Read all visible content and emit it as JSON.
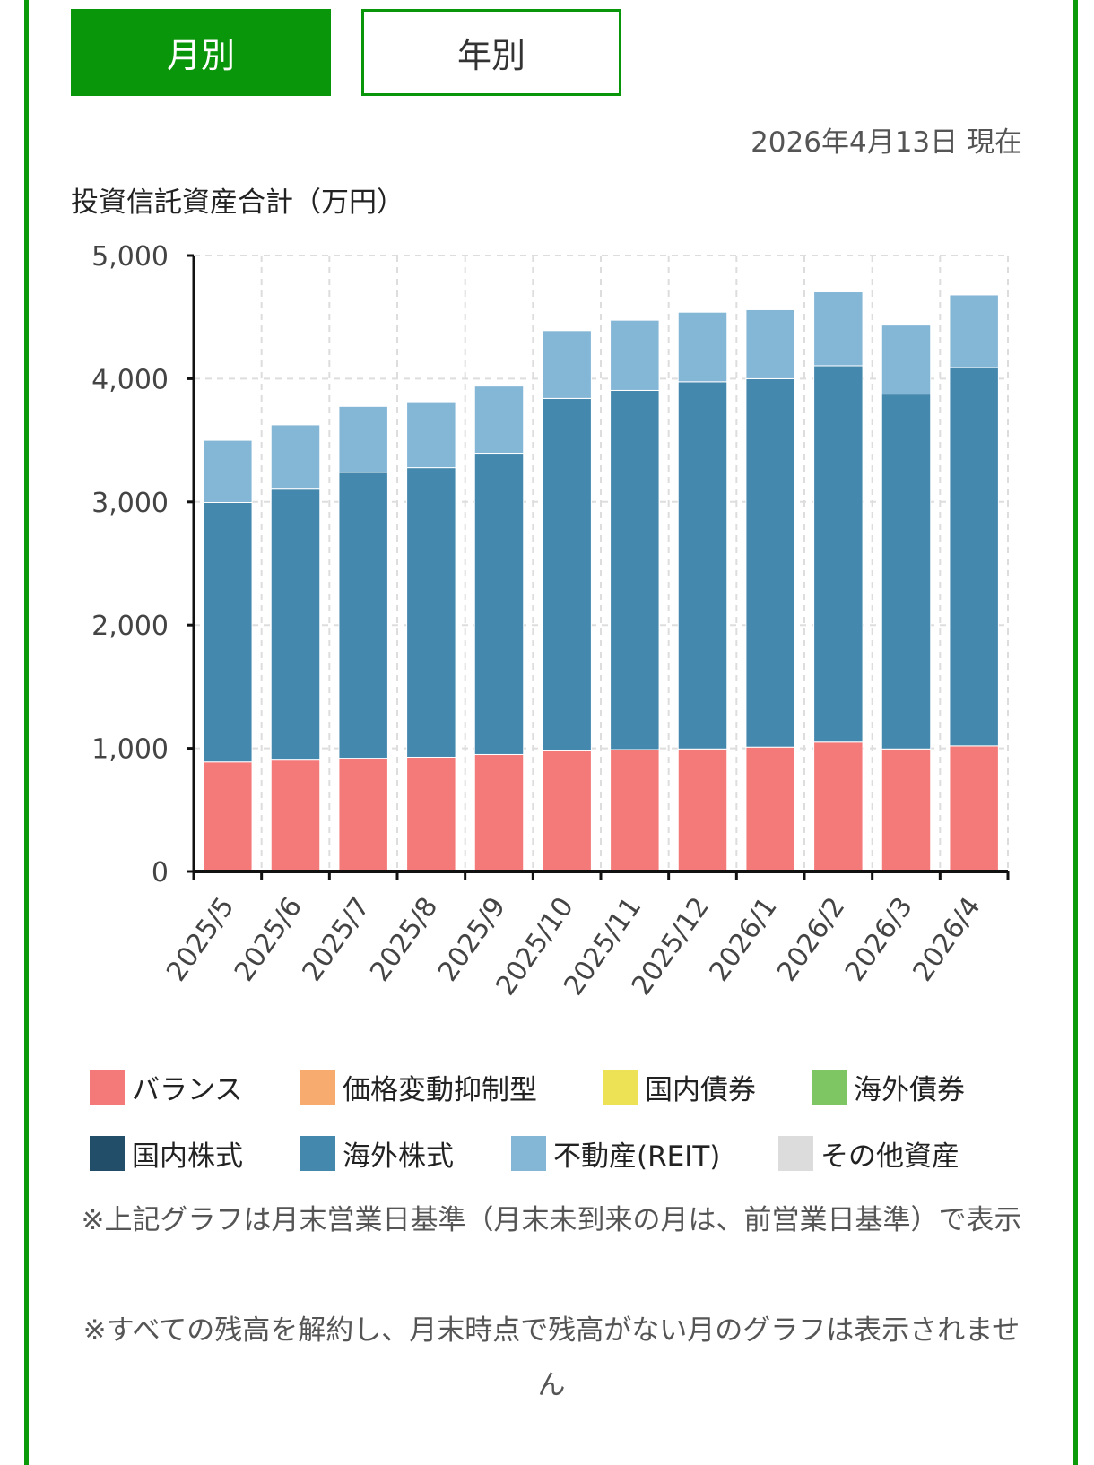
{
  "tabs": [
    {
      "label": "月別",
      "selected": true
    },
    {
      "label": "年別",
      "selected": false
    }
  ],
  "as_of": "2026年4月13日 現在",
  "colors": {
    "accent": "#0a960a",
    "balance": "#f47a7a",
    "price_stable": "#f8ab6e",
    "domestic_bond": "#ede155",
    "foreign_bond": "#7dc663",
    "domestic_stock": "#234e6a",
    "foreign_stock": "#4588ae",
    "reit": "#84b6d6",
    "other": "#dcdcdc"
  },
  "chart_data": {
    "type": "bar",
    "stacked": true,
    "title": "投資信託資産合計（万円）",
    "xlabel": "",
    "ylabel": "投資信託資産合計（万円）",
    "ylim": [
      0,
      5000
    ],
    "yticks": [
      "0",
      "1,000",
      "2,000",
      "3,000",
      "4,000",
      "5,000"
    ],
    "ytick_values": [
      0,
      1000,
      2000,
      3000,
      4000,
      5000
    ],
    "grid": true,
    "legend_position": "bottom",
    "categories": [
      "2025/5",
      "2025/6",
      "2025/7",
      "2025/8",
      "2025/9",
      "2025/10",
      "2025/11",
      "2025/12",
      "2026/1",
      "2026/2",
      "2026/3",
      "2026/4"
    ],
    "series": [
      {
        "name": "バランス",
        "color_key": "balance",
        "values": [
          890,
          905,
          920,
          928,
          950,
          980,
          990,
          995,
          1010,
          1050,
          995,
          1020
        ]
      },
      {
        "name": "価格変動抑制型",
        "color_key": "price_stable",
        "values": [
          0,
          0,
          0,
          0,
          0,
          0,
          0,
          0,
          0,
          0,
          0,
          0
        ]
      },
      {
        "name": "国内債券",
        "color_key": "domestic_bond",
        "values": [
          0,
          0,
          0,
          0,
          0,
          0,
          0,
          0,
          0,
          0,
          0,
          0
        ]
      },
      {
        "name": "海外債券",
        "color_key": "foreign_bond",
        "values": [
          0,
          0,
          0,
          0,
          0,
          0,
          0,
          0,
          0,
          0,
          0,
          0
        ]
      },
      {
        "name": "国内株式",
        "color_key": "domestic_stock",
        "values": [
          0,
          0,
          0,
          0,
          0,
          0,
          0,
          0,
          0,
          0,
          0,
          0
        ]
      },
      {
        "name": "海外株式",
        "color_key": "foreign_stock",
        "values": [
          2105,
          2205,
          2320,
          2350,
          2445,
          2860,
          2915,
          2980,
          2990,
          3055,
          2880,
          3070
        ]
      },
      {
        "name": "不動産(REIT)",
        "color_key": "reit",
        "values": [
          505,
          515,
          535,
          535,
          545,
          550,
          570,
          565,
          560,
          600,
          560,
          590
        ]
      },
      {
        "name": "その他資産",
        "color_key": "other",
        "values": [
          0,
          0,
          0,
          0,
          0,
          0,
          0,
          0,
          0,
          0,
          0,
          0
        ]
      }
    ]
  },
  "legend": [
    [
      {
        "label": "バランス",
        "color_key": "balance"
      },
      {
        "label": "価格変動抑制型",
        "color_key": "price_stable"
      },
      {
        "label": "国内債券",
        "color_key": "domestic_bond"
      },
      {
        "label": "海外債券",
        "color_key": "foreign_bond"
      }
    ],
    [
      {
        "label": "国内株式",
        "color_key": "domestic_stock"
      },
      {
        "label": "海外株式",
        "color_key": "foreign_stock"
      },
      {
        "label": "不動産(REIT)",
        "color_key": "reit"
      },
      {
        "label": "その他資産",
        "color_key": "other"
      }
    ]
  ],
  "notes": [
    "※上記グラフは月末営業日基準（月末未到来の月は、前営業日基準）で表示",
    "※すべての残高を解約し、月末時点で残高がない月のグラフは表示されません"
  ]
}
